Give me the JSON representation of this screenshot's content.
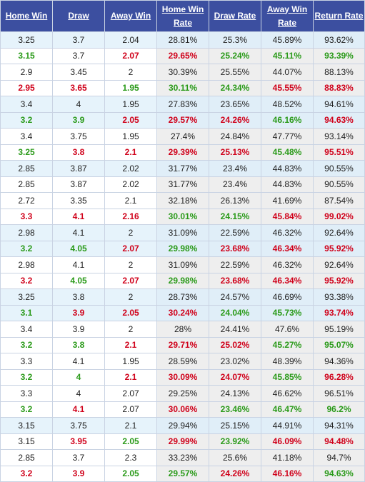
{
  "headers": [
    {
      "line1": "Home Win",
      "line2": ""
    },
    {
      "line1": "Draw",
      "line2": ""
    },
    {
      "line1": "Away Win",
      "line2": ""
    },
    {
      "line1": "Home Win",
      "line2": "Rate"
    },
    {
      "line1": "Draw Rate",
      "line2": ""
    },
    {
      "line1": "Away Win",
      "line2": "Rate"
    },
    {
      "line1": "Return Rate",
      "line2": ""
    }
  ],
  "colors": {
    "header_bg": "#3c4fa0",
    "up": "#2a9a19",
    "down": "#d0021b",
    "blue_row": "#e6f3fb",
    "rate_cell": "#eeeeee"
  },
  "rows": [
    {
      "bg": "blue",
      "cells": [
        [
          "3.25",
          ""
        ],
        [
          "3.7",
          ""
        ],
        [
          "2.04",
          ""
        ],
        [
          "28.81%",
          ""
        ],
        [
          "25.3%",
          ""
        ],
        [
          "45.89%",
          ""
        ],
        [
          "93.62%",
          ""
        ]
      ]
    },
    {
      "bg": "light",
      "cells": [
        [
          "3.15",
          "g"
        ],
        [
          "3.7",
          ""
        ],
        [
          "2.07",
          "r"
        ],
        [
          "29.65%",
          "r"
        ],
        [
          "25.24%",
          "g"
        ],
        [
          "45.11%",
          "g"
        ],
        [
          "93.39%",
          "g"
        ]
      ]
    },
    {
      "bg": "light",
      "cells": [
        [
          "2.9",
          ""
        ],
        [
          "3.45",
          ""
        ],
        [
          "2",
          ""
        ],
        [
          "30.39%",
          ""
        ],
        [
          "25.55%",
          ""
        ],
        [
          "44.07%",
          ""
        ],
        [
          "88.13%",
          ""
        ]
      ]
    },
    {
      "bg": "light",
      "cells": [
        [
          "2.95",
          "r"
        ],
        [
          "3.65",
          "r"
        ],
        [
          "1.95",
          "g"
        ],
        [
          "30.11%",
          "g"
        ],
        [
          "24.34%",
          "g"
        ],
        [
          "45.55%",
          "r"
        ],
        [
          "88.83%",
          "r"
        ]
      ]
    },
    {
      "bg": "blue",
      "cells": [
        [
          "3.4",
          ""
        ],
        [
          "4",
          ""
        ],
        [
          "1.95",
          ""
        ],
        [
          "27.83%",
          ""
        ],
        [
          "23.65%",
          ""
        ],
        [
          "48.52%",
          ""
        ],
        [
          "94.61%",
          ""
        ]
      ]
    },
    {
      "bg": "blue",
      "cells": [
        [
          "3.2",
          "g"
        ],
        [
          "3.9",
          "g"
        ],
        [
          "2.05",
          "r"
        ],
        [
          "29.57%",
          "r"
        ],
        [
          "24.26%",
          "r"
        ],
        [
          "46.16%",
          "g"
        ],
        [
          "94.63%",
          "r"
        ]
      ]
    },
    {
      "bg": "light",
      "cells": [
        [
          "3.4",
          ""
        ],
        [
          "3.75",
          ""
        ],
        [
          "1.95",
          ""
        ],
        [
          "27.4%",
          ""
        ],
        [
          "24.84%",
          ""
        ],
        [
          "47.77%",
          ""
        ],
        [
          "93.14%",
          ""
        ]
      ]
    },
    {
      "bg": "light",
      "cells": [
        [
          "3.25",
          "g"
        ],
        [
          "3.8",
          "r"
        ],
        [
          "2.1",
          "r"
        ],
        [
          "29.39%",
          "r"
        ],
        [
          "25.13%",
          "r"
        ],
        [
          "45.48%",
          "g"
        ],
        [
          "95.51%",
          "r"
        ]
      ]
    },
    {
      "bg": "blue",
      "cells": [
        [
          "2.85",
          ""
        ],
        [
          "3.87",
          ""
        ],
        [
          "2.02",
          ""
        ],
        [
          "31.77%",
          ""
        ],
        [
          "23.4%",
          ""
        ],
        [
          "44.83%",
          ""
        ],
        [
          "90.55%",
          ""
        ]
      ]
    },
    {
      "bg": "light",
      "cells": [
        [
          "2.85",
          ""
        ],
        [
          "3.87",
          ""
        ],
        [
          "2.02",
          ""
        ],
        [
          "31.77%",
          ""
        ],
        [
          "23.4%",
          ""
        ],
        [
          "44.83%",
          ""
        ],
        [
          "90.55%",
          ""
        ]
      ]
    },
    {
      "bg": "light",
      "cells": [
        [
          "2.72",
          ""
        ],
        [
          "3.35",
          ""
        ],
        [
          "2.1",
          ""
        ],
        [
          "32.18%",
          ""
        ],
        [
          "26.13%",
          ""
        ],
        [
          "41.69%",
          ""
        ],
        [
          "87.54%",
          ""
        ]
      ]
    },
    {
      "bg": "light",
      "cells": [
        [
          "3.3",
          "r"
        ],
        [
          "4.1",
          "r"
        ],
        [
          "2.16",
          "r"
        ],
        [
          "30.01%",
          "g"
        ],
        [
          "24.15%",
          "g"
        ],
        [
          "45.84%",
          "r"
        ],
        [
          "99.02%",
          "r"
        ]
      ]
    },
    {
      "bg": "blue",
      "cells": [
        [
          "2.98",
          ""
        ],
        [
          "4.1",
          ""
        ],
        [
          "2",
          ""
        ],
        [
          "31.09%",
          ""
        ],
        [
          "22.59%",
          ""
        ],
        [
          "46.32%",
          ""
        ],
        [
          "92.64%",
          ""
        ]
      ]
    },
    {
      "bg": "blue",
      "cells": [
        [
          "3.2",
          "g"
        ],
        [
          "4.05",
          "g"
        ],
        [
          "2.07",
          "r"
        ],
        [
          "29.98%",
          "g"
        ],
        [
          "23.68%",
          "r"
        ],
        [
          "46.34%",
          "r"
        ],
        [
          "95.92%",
          "r"
        ]
      ]
    },
    {
      "bg": "light",
      "cells": [
        [
          "2.98",
          ""
        ],
        [
          "4.1",
          ""
        ],
        [
          "2",
          ""
        ],
        [
          "31.09%",
          ""
        ],
        [
          "22.59%",
          ""
        ],
        [
          "46.32%",
          ""
        ],
        [
          "92.64%",
          ""
        ]
      ]
    },
    {
      "bg": "light",
      "cells": [
        [
          "3.2",
          "r"
        ],
        [
          "4.05",
          "g"
        ],
        [
          "2.07",
          "r"
        ],
        [
          "29.98%",
          "g"
        ],
        [
          "23.68%",
          "r"
        ],
        [
          "46.34%",
          "r"
        ],
        [
          "95.92%",
          "r"
        ]
      ]
    },
    {
      "bg": "blue",
      "cells": [
        [
          "3.25",
          ""
        ],
        [
          "3.8",
          ""
        ],
        [
          "2",
          ""
        ],
        [
          "28.73%",
          ""
        ],
        [
          "24.57%",
          ""
        ],
        [
          "46.69%",
          ""
        ],
        [
          "93.38%",
          ""
        ]
      ]
    },
    {
      "bg": "blue",
      "cells": [
        [
          "3.1",
          "g"
        ],
        [
          "3.9",
          "r"
        ],
        [
          "2.05",
          "r"
        ],
        [
          "30.24%",
          "r"
        ],
        [
          "24.04%",
          "g"
        ],
        [
          "45.73%",
          "g"
        ],
        [
          "93.74%",
          "r"
        ]
      ]
    },
    {
      "bg": "light",
      "cells": [
        [
          "3.4",
          ""
        ],
        [
          "3.9",
          ""
        ],
        [
          "2",
          ""
        ],
        [
          "28%",
          ""
        ],
        [
          "24.41%",
          ""
        ],
        [
          "47.6%",
          ""
        ],
        [
          "95.19%",
          ""
        ]
      ]
    },
    {
      "bg": "light",
      "cells": [
        [
          "3.2",
          "g"
        ],
        [
          "3.8",
          "g"
        ],
        [
          "2.1",
          "r"
        ],
        [
          "29.71%",
          "r"
        ],
        [
          "25.02%",
          "r"
        ],
        [
          "45.27%",
          "g"
        ],
        [
          "95.07%",
          "g"
        ]
      ]
    },
    {
      "bg": "light",
      "cells": [
        [
          "3.3",
          ""
        ],
        [
          "4.1",
          ""
        ],
        [
          "1.95",
          ""
        ],
        [
          "28.59%",
          ""
        ],
        [
          "23.02%",
          ""
        ],
        [
          "48.39%",
          ""
        ],
        [
          "94.36%",
          ""
        ]
      ]
    },
    {
      "bg": "light",
      "cells": [
        [
          "3.2",
          "g"
        ],
        [
          "4",
          "g"
        ],
        [
          "2.1",
          "r"
        ],
        [
          "30.09%",
          "r"
        ],
        [
          "24.07%",
          "r"
        ],
        [
          "45.85%",
          "g"
        ],
        [
          "96.28%",
          "r"
        ]
      ]
    },
    {
      "bg": "light",
      "cells": [
        [
          "3.3",
          ""
        ],
        [
          "4",
          ""
        ],
        [
          "2.07",
          ""
        ],
        [
          "29.25%",
          ""
        ],
        [
          "24.13%",
          ""
        ],
        [
          "46.62%",
          ""
        ],
        [
          "96.51%",
          ""
        ]
      ]
    },
    {
      "bg": "light",
      "cells": [
        [
          "3.2",
          "g"
        ],
        [
          "4.1",
          "r"
        ],
        [
          "2.07",
          ""
        ],
        [
          "30.06%",
          "r"
        ],
        [
          "23.46%",
          "g"
        ],
        [
          "46.47%",
          "g"
        ],
        [
          "96.2%",
          "g"
        ]
      ]
    },
    {
      "bg": "blue",
      "cells": [
        [
          "3.15",
          ""
        ],
        [
          "3.75",
          ""
        ],
        [
          "2.1",
          ""
        ],
        [
          "29.94%",
          ""
        ],
        [
          "25.15%",
          ""
        ],
        [
          "44.91%",
          ""
        ],
        [
          "94.31%",
          ""
        ]
      ]
    },
    {
      "bg": "light",
      "cells": [
        [
          "3.15",
          ""
        ],
        [
          "3.95",
          "r"
        ],
        [
          "2.05",
          "g"
        ],
        [
          "29.99%",
          "r"
        ],
        [
          "23.92%",
          "g"
        ],
        [
          "46.09%",
          "r"
        ],
        [
          "94.48%",
          "r"
        ]
      ]
    },
    {
      "bg": "light",
      "cells": [
        [
          "2.85",
          ""
        ],
        [
          "3.7",
          ""
        ],
        [
          "2.3",
          ""
        ],
        [
          "33.23%",
          ""
        ],
        [
          "25.6%",
          ""
        ],
        [
          "41.18%",
          ""
        ],
        [
          "94.7%",
          ""
        ]
      ]
    },
    {
      "bg": "light",
      "cells": [
        [
          "3.2",
          "r"
        ],
        [
          "3.9",
          "r"
        ],
        [
          "2.05",
          "g"
        ],
        [
          "29.57%",
          "g"
        ],
        [
          "24.26%",
          "r"
        ],
        [
          "46.16%",
          "r"
        ],
        [
          "94.63%",
          "g"
        ]
      ]
    }
  ]
}
